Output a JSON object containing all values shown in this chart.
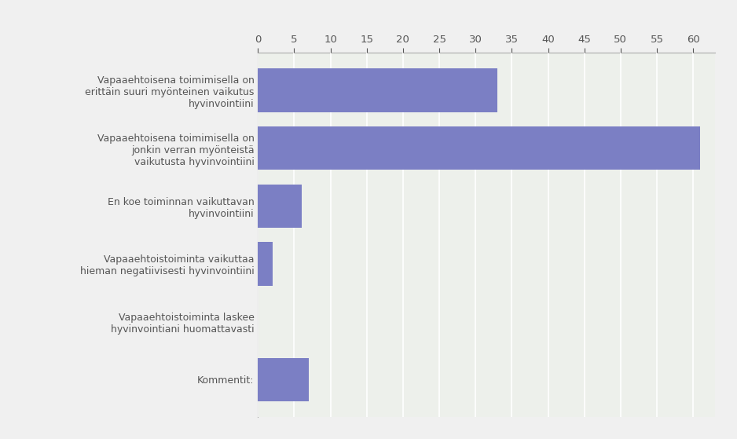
{
  "categories": [
    "Vapaaehtoisena toimimisella on\nerittäin suuri myönteinen vaikutus\nhyvinvointiini",
    "Vapaaehtoisena toimimisella on\njonkin verran myönteistä\nvaikutusta hyvinvointiini",
    "En koe toiminnan vaikuttavan\nhyvinvointiini",
    "Vapaaehtoistoiminta vaikuttaa\nhieman negatiivisesti hyvinvointiini",
    "Vapaaehtoistoiminta laskee\nhyvinvointiani huomattavasti",
    "Kommentit:"
  ],
  "values": [
    33,
    61,
    6,
    2,
    0,
    7
  ],
  "bar_color": "#7b7fc4",
  "background_color": "#f0f0f0",
  "plot_bg_color": "#edf0eb",
  "xlim": [
    0,
    63
  ],
  "xticks": [
    0,
    5,
    10,
    15,
    20,
    25,
    30,
    35,
    40,
    45,
    50,
    55,
    60
  ],
  "grid_color": "#ffffff",
  "text_color": "#555555",
  "label_fontsize": 9,
  "tick_fontsize": 9.5,
  "bar_height": 0.75
}
